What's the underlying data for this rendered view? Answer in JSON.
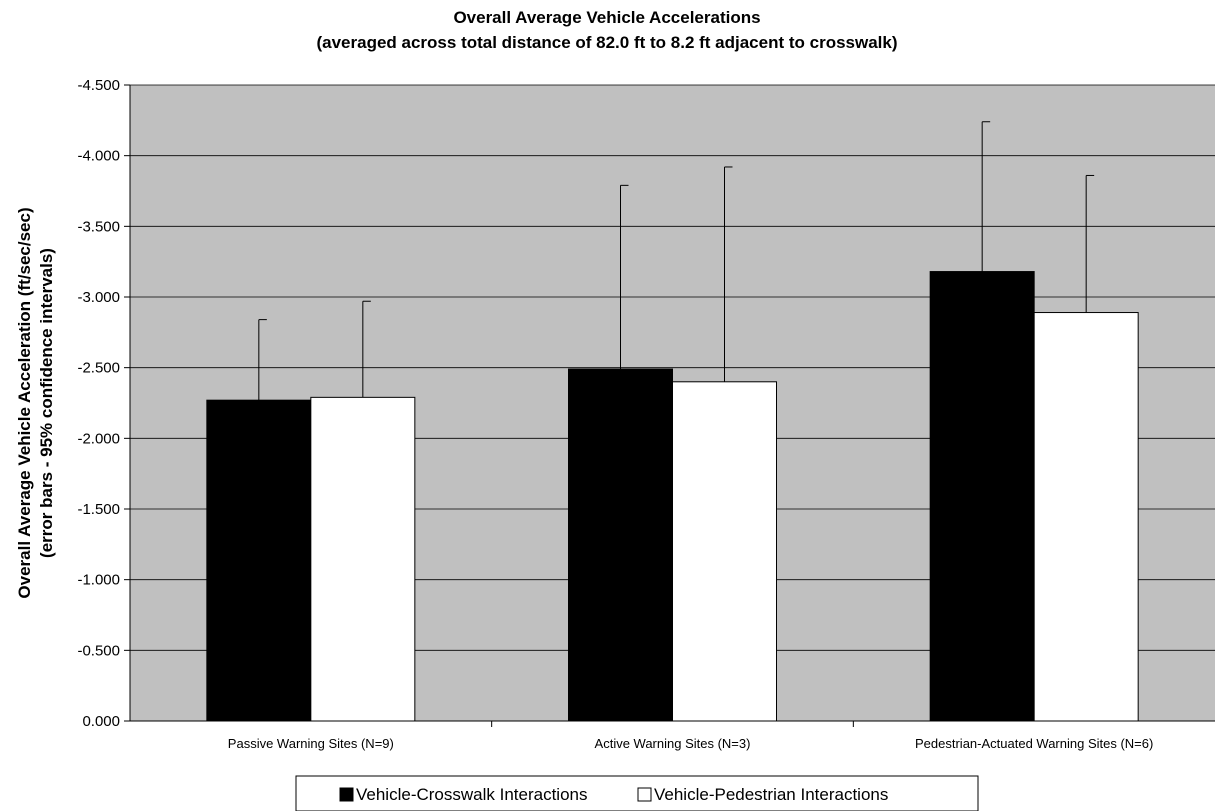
{
  "chart_data": {
    "type": "bar",
    "title": "Overall Average Vehicle Accelerations",
    "subtitle": "(averaged across total distance of 82.0 ft to 8.2 ft adjacent to crosswalk)",
    "ylabel": "Overall Average Vehicle Acceleration (ft/sec/sec)",
    "ylabel2": "(error bars - 95% confidence intervals)",
    "xlabel": "",
    "categories": [
      "Passive Warning Sites (N=9)",
      "Active Warning Sites (N=3)",
      "Pedestrian-Actuated Warning Sites (N=6)"
    ],
    "series": [
      {
        "name": "Vehicle-Crosswalk Interactions",
        "values": [
          -2.27,
          -2.49,
          -3.18
        ],
        "error_upper": [
          -2.84,
          -3.79,
          -4.24
        ],
        "color": "#000000"
      },
      {
        "name": "Vehicle-Pedestrian Interactions",
        "values": [
          -2.29,
          -2.4,
          -2.89
        ],
        "error_upper": [
          -2.97,
          -3.92,
          -3.86
        ],
        "color": "#ffffff"
      }
    ],
    "ylim": [
      0,
      -4.5
    ],
    "yticks": [
      0,
      -0.5,
      -1.0,
      -1.5,
      -2.0,
      -2.5,
      -3.0,
      -3.5,
      -4.0,
      -4.5
    ],
    "ytick_labels": [
      "0.000",
      "-0.500",
      "-1.000",
      "-1.500",
      "-2.000",
      "-2.500",
      "-3.000",
      "-3.500",
      "-4.000",
      "-4.500"
    ],
    "y_axis_inverted": true,
    "grid": true,
    "plot_background": "#c0c0c0",
    "legend_position": "bottom"
  }
}
